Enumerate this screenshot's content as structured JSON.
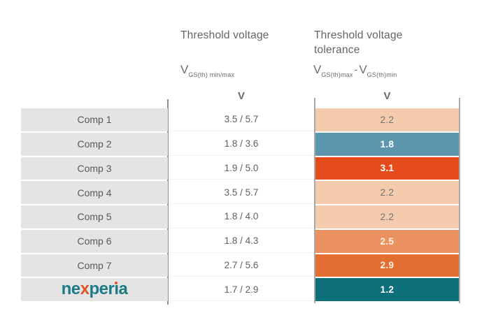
{
  "colors": {
    "row_label_bg": "#e4e4e4",
    "header_text": "#666563",
    "divider": "#8f8f8f",
    "logo_teal": "#1a7b87",
    "logo_orange": "#e4522a"
  },
  "header": {
    "col2_title": "Threshold voltage",
    "col3_title_line1": "Threshold voltage",
    "col3_title_line2": "tolerance",
    "col2_formula": {
      "base": "V",
      "sub": "GS(th) min/max"
    },
    "col3_formula": {
      "base1": "V",
      "sub1": "GS(th)max",
      "minus": "-",
      "base2": "V",
      "sub2": "GS(th)min"
    },
    "col2_unit": "V",
    "col3_unit": "V"
  },
  "logo": {
    "part1": "ne",
    "part2": "x",
    "part3": "per",
    "part4": "ı",
    "part5": "a"
  },
  "table": {
    "rows": [
      {
        "label": "Comp 1",
        "range": "3.5 / 5.7",
        "tol": "2.2",
        "tol_bg": "#f5cbad",
        "tol_color": "#70706e",
        "tol_weight": "normal"
      },
      {
        "label": "Comp 2",
        "range": "1.8 / 3.6",
        "tol": "1.8",
        "tol_bg": "#5b96ac",
        "tol_color": "#ffffff",
        "tol_weight": "bold"
      },
      {
        "label": "Comp 3",
        "range": "1.9 / 5.0",
        "tol": "3.1",
        "tol_bg": "#e54a1a",
        "tol_color": "#ffffff",
        "tol_weight": "bold"
      },
      {
        "label": "Comp 4",
        "range": "3.5 / 5.7",
        "tol": "2.2",
        "tol_bg": "#f5cbad",
        "tol_color": "#70706e",
        "tol_weight": "normal"
      },
      {
        "label": "Comp 5",
        "range": "1.8 / 4.0",
        "tol": "2.2",
        "tol_bg": "#f5cbad",
        "tol_color": "#70706e",
        "tol_weight": "normal"
      },
      {
        "label": "Comp 6",
        "range": "1.8 / 4.3",
        "tol": "2.5",
        "tol_bg": "#eb9160",
        "tol_color": "#fdf3e6",
        "tol_weight": "bold"
      },
      {
        "label": "Comp 7",
        "range": "2.7 / 5.6",
        "tol": "2.9",
        "tol_bg": "#e26e31",
        "tol_color": "#fdf3e6",
        "tol_weight": "bold"
      },
      {
        "label": "nexperia",
        "range": "1.7 / 2.9",
        "tol": "1.2",
        "tol_bg": "#0d6f79",
        "tol_color": "#ffffff",
        "tol_weight": "bold"
      }
    ]
  },
  "chart_data": {
    "type": "table",
    "title": "Threshold voltage comparison",
    "categories": [
      "Comp 1",
      "Comp 2",
      "Comp 3",
      "Comp 4",
      "Comp 5",
      "Comp 6",
      "Comp 7",
      "nexperia"
    ],
    "series": [
      {
        "name": "Threshold voltage VGS(th) min (V)",
        "values": [
          3.5,
          1.8,
          1.9,
          3.5,
          1.8,
          1.8,
          2.7,
          1.7
        ]
      },
      {
        "name": "Threshold voltage VGS(th) max (V)",
        "values": [
          5.7,
          3.6,
          5.0,
          5.7,
          4.0,
          4.3,
          5.6,
          2.9
        ]
      },
      {
        "name": "Threshold voltage tolerance VGS(th)max - VGS(th)min (V)",
        "values": [
          2.2,
          1.8,
          3.1,
          2.2,
          2.2,
          2.5,
          2.9,
          1.2
        ]
      }
    ],
    "unit": "V",
    "tolerance_cell_colors": [
      "#f5cbad",
      "#5b96ac",
      "#e54a1a",
      "#f5cbad",
      "#f5cbad",
      "#eb9160",
      "#e26e31",
      "#0d6f79"
    ],
    "legend_position": "none",
    "grid": false
  }
}
